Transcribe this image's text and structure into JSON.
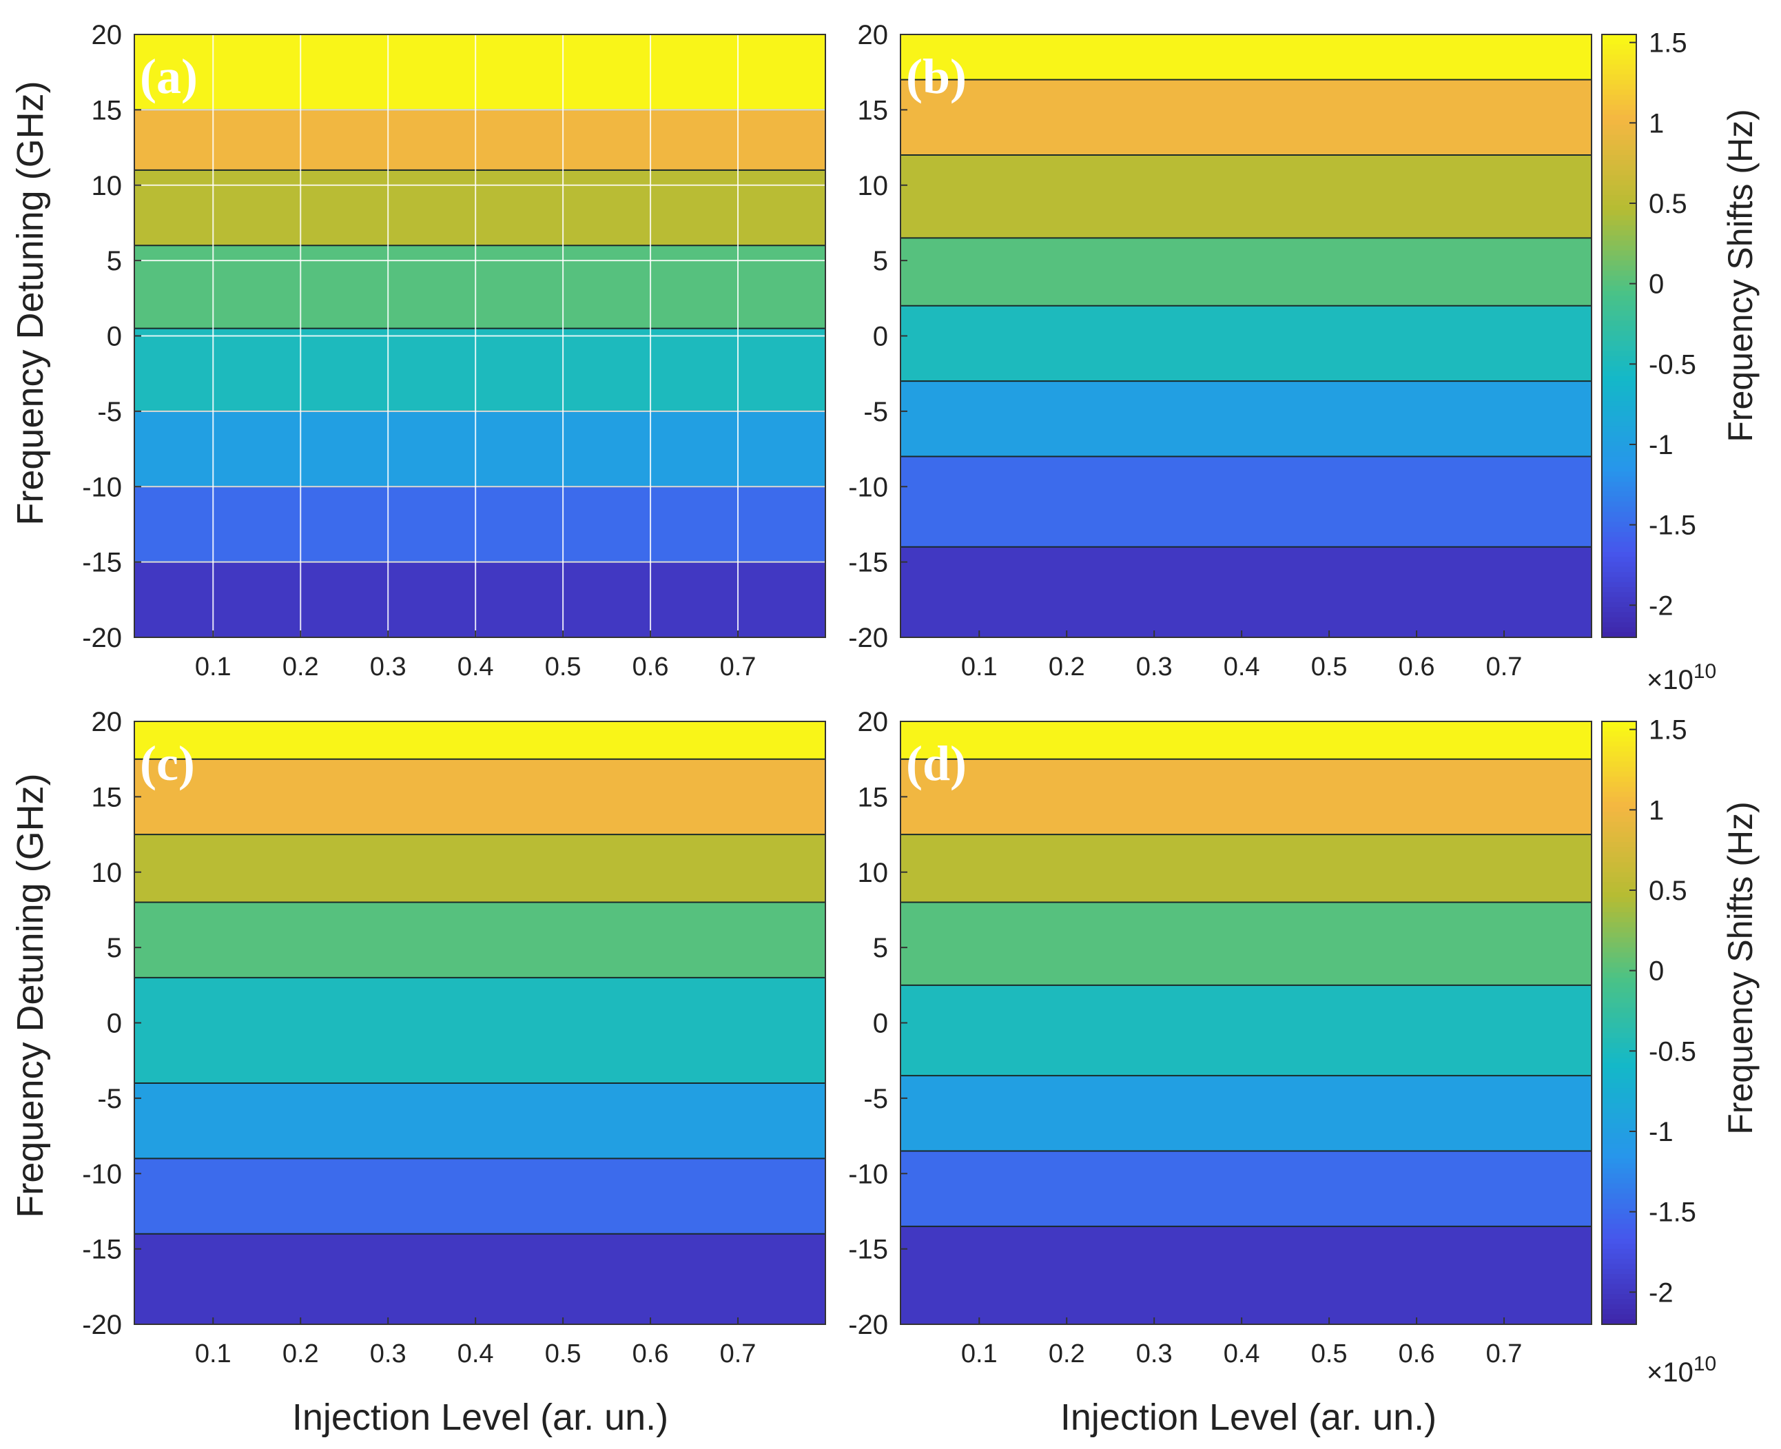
{
  "chart_data": {
    "type": "contour",
    "layout": "2x2 subplots",
    "xlabel": "Injection Level (ar. un.)",
    "ylabel": "Frequency Detuning (GHz)",
    "xlim": [
      0.01,
      0.8
    ],
    "ylim": [
      -20,
      20
    ],
    "x_ticks": [
      "0.1",
      "0.2",
      "0.3",
      "0.4",
      "0.5",
      "0.6",
      "0.7"
    ],
    "y_ticks": [
      "20",
      "15",
      "10",
      "5",
      "0",
      "-5",
      "-10",
      "-15",
      "-20"
    ],
    "colorbar": {
      "label": "Frequency Shifts (Hz)",
      "exponent": "×10",
      "exponent_power": "10",
      "placement": "right of each row",
      "colormap": "parula",
      "ticks": [
        "1.5",
        "1",
        "0.5",
        "0",
        "-0.5",
        "-1",
        "-1.5",
        "-2"
      ],
      "range": [
        -22000000000.0,
        15500000000.0
      ]
    },
    "panels": [
      {
        "label": "(a)",
        "grid": true,
        "levels": [
          {
            "y_min": 15,
            "y_max": 20,
            "value": 15000000000.0
          },
          {
            "y_min": 11,
            "y_max": 15,
            "value": 10000000000.0
          },
          {
            "y_min": 6,
            "y_max": 11,
            "value": 5000000000.0
          },
          {
            "y_min": 0.5,
            "y_max": 6,
            "value": 0.0
          },
          {
            "y_min": -5,
            "y_max": 0.5,
            "value": -5000000000.0
          },
          {
            "y_min": -10,
            "y_max": -5,
            "value": -10000000000.0
          },
          {
            "y_min": -15,
            "y_max": -10,
            "value": -15000000000.0
          },
          {
            "y_min": -20,
            "y_max": -15,
            "value": -20000000000.0
          }
        ]
      },
      {
        "label": "(b)",
        "grid": false,
        "levels": [
          {
            "y_min": 17,
            "y_max": 20,
            "value": 15000000000.0
          },
          {
            "y_min": 12,
            "y_max": 17,
            "value": 10000000000.0
          },
          {
            "y_min": 6.5,
            "y_max": 12,
            "value": 5000000000.0
          },
          {
            "y_min": 2,
            "y_max": 6.5,
            "value": 0.0
          },
          {
            "y_min": -3,
            "y_max": 2,
            "value": -5000000000.0
          },
          {
            "y_min": -8,
            "y_max": -3,
            "value": -10000000000.0
          },
          {
            "y_min": -14,
            "y_max": -8,
            "value": -15000000000.0
          },
          {
            "y_min": -20,
            "y_max": -14,
            "value": -20000000000.0
          }
        ]
      },
      {
        "label": "(c)",
        "grid": false,
        "levels": [
          {
            "y_min": 17.5,
            "y_max": 20,
            "value": 15000000000.0
          },
          {
            "y_min": 12.5,
            "y_max": 17.5,
            "value": 10000000000.0
          },
          {
            "y_min": 8,
            "y_max": 12.5,
            "value": 5000000000.0
          },
          {
            "y_min": 3,
            "y_max": 8,
            "value": 0.0
          },
          {
            "y_min": -4,
            "y_max": 3,
            "value": -5000000000.0
          },
          {
            "y_min": -9,
            "y_max": -4,
            "value": -10000000000.0
          },
          {
            "y_min": -14,
            "y_max": -9,
            "value": -15000000000.0
          },
          {
            "y_min": -20,
            "y_max": -14,
            "value": -20000000000.0
          }
        ]
      },
      {
        "label": "(d)",
        "grid": false,
        "levels": [
          {
            "y_min": 17.5,
            "y_max": 20,
            "value": 15000000000.0
          },
          {
            "y_min": 12.5,
            "y_max": 17.5,
            "value": 10000000000.0
          },
          {
            "y_min": 8,
            "y_max": 12.5,
            "value": 5000000000.0
          },
          {
            "y_min": 2.5,
            "y_max": 8,
            "value": 0.0
          },
          {
            "y_min": -3.5,
            "y_max": 2.5,
            "value": -5000000000.0
          },
          {
            "y_min": -8.5,
            "y_max": -3.5,
            "value": -10000000000.0
          },
          {
            "y_min": -13.5,
            "y_max": -8.5,
            "value": -15000000000.0
          },
          {
            "y_min": -20,
            "y_max": -13.5,
            "value": -20000000000.0
          }
        ]
      }
    ]
  }
}
